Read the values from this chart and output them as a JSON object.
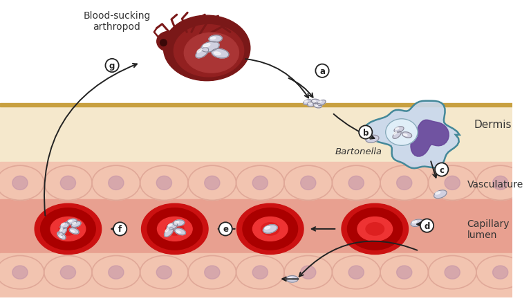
{
  "bg_top_color": "#FFFFFF",
  "bg_dermis_color": "#F5E8CC",
  "bg_dermis_line_color": "#C8A040",
  "bg_vasc_color": "#F2C4B0",
  "bg_lumen_color": "#E8A090",
  "rbc_outer": "#CC1111",
  "rbc_ring": "#AA0000",
  "rbc_mid": "#EE3333",
  "rbc_core": "#DD2020",
  "cell_body_color": "#C8D8EE",
  "cell_body_light": "#D8E8F5",
  "cell_border_color": "#448899",
  "cell_nucleus_color": "#664499",
  "phago_color": "#E0EEF8",
  "bacteria_fill": "#D0D0E0",
  "bacteria_hi": "#F0F0F8",
  "bacteria_outline": "#888898",
  "flea_dark": "#7A1818",
  "flea_mid": "#922020",
  "flea_light": "#AA3030",
  "flea_belly": "#C05050",
  "arrow_color": "#222222",
  "label_color": "#333333",
  "dermis_label": "Dermis",
  "vasculature_label": "Vasculature",
  "capillary_label": "Capillary\nlumen",
  "arthropod_label": "Blood-sucking\narthropod",
  "bartonella_label": "Bartonella",
  "figsize": [
    7.68,
    4.39
  ],
  "dpi": 100
}
